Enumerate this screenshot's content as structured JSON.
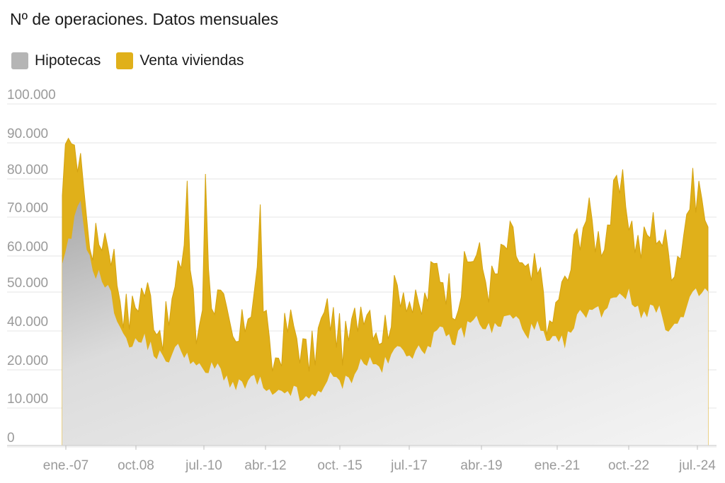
{
  "title": "Nº de operaciones. Datos mensuales",
  "legend": [
    {
      "name": "Hipotecas",
      "color": "#b5b5b5"
    },
    {
      "name": "Venta viviendas",
      "color": "#e0b01a"
    }
  ],
  "chart_data": {
    "type": "area",
    "title": "Nº de operaciones. Datos mensuales",
    "xlabel": "",
    "ylabel": "",
    "ylim": [
      0,
      100000
    ],
    "y_ticks": [
      "0",
      "10.000",
      "20.000",
      "40.000",
      "50.000",
      "60.000",
      "70.000",
      "80.000",
      "90.000",
      "100.000"
    ],
    "x_ticks": [
      "ene.-07",
      "oct.08",
      "jul.-10",
      "abr.-12",
      "oct. -15",
      "jul.-17",
      "abr.-19",
      "ene.-21",
      "oct.-22",
      "jul.-24"
    ],
    "grid": true,
    "legend_position": "top-left",
    "x_start": "2007-01",
    "x_end": "2024-09",
    "series": [
      {
        "name": "Hipotecas",
        "color": "#b5b5b5",
        "anchors": [
          [
            "2007-01",
            52000
          ],
          [
            "2007-04",
            60000
          ],
          [
            "2007-07",
            72000
          ],
          [
            "2007-10",
            56000
          ],
          [
            "2008-01",
            50000
          ],
          [
            "2008-04",
            44000
          ],
          [
            "2008-07",
            38000
          ],
          [
            "2008-10",
            34000
          ],
          [
            "2009-01",
            30000
          ],
          [
            "2009-07",
            28000
          ],
          [
            "2010-01",
            27000
          ],
          [
            "2010-07",
            26000
          ],
          [
            "2011-01",
            22000
          ],
          [
            "2011-07",
            20000
          ],
          [
            "2012-01",
            18000
          ],
          [
            "2012-07",
            17000
          ],
          [
            "2013-01",
            15000
          ],
          [
            "2013-07",
            14000
          ],
          [
            "2014-01",
            16000
          ],
          [
            "2014-07",
            19000
          ],
          [
            "2015-01",
            22000
          ],
          [
            "2015-07",
            24000
          ],
          [
            "2016-01",
            26000
          ],
          [
            "2016-07",
            28000
          ],
          [
            "2017-01",
            30000
          ],
          [
            "2017-07",
            32000
          ],
          [
            "2018-01",
            34000
          ],
          [
            "2018-07",
            36000
          ],
          [
            "2019-01",
            36000
          ],
          [
            "2019-07",
            36000
          ],
          [
            "2020-01",
            35000
          ],
          [
            "2020-04",
            28000
          ],
          [
            "2020-07",
            30000
          ],
          [
            "2021-01",
            35000
          ],
          [
            "2021-07",
            40000
          ],
          [
            "2022-01",
            43000
          ],
          [
            "2022-07",
            44000
          ],
          [
            "2023-01",
            40000
          ],
          [
            "2023-07",
            36000
          ],
          [
            "2024-01",
            38000
          ],
          [
            "2024-07",
            45000
          ],
          [
            "2024-09",
            47000
          ]
        ]
      },
      {
        "name": "Venta viviendas",
        "color": "#e0b01a",
        "anchors": [
          [
            "2007-01",
            68000
          ],
          [
            "2007-03",
            92000
          ],
          [
            "2007-05",
            78000
          ],
          [
            "2007-07",
            88000
          ],
          [
            "2007-09",
            70000
          ],
          [
            "2007-12",
            62000
          ],
          [
            "2008-03",
            58000
          ],
          [
            "2008-06",
            52000
          ],
          [
            "2008-09",
            46000
          ],
          [
            "2008-12",
            42000
          ],
          [
            "2009-06",
            40000
          ],
          [
            "2009-12",
            40000
          ],
          [
            "2010-03",
            44000
          ],
          [
            "2010-06",
            62000
          ],
          [
            "2010-09",
            36000
          ],
          [
            "2010-12",
            55000
          ],
          [
            "2011-03",
            38000
          ],
          [
            "2011-09",
            34000
          ],
          [
            "2012-03",
            38000
          ],
          [
            "2012-06",
            50000
          ],
          [
            "2012-09",
            30000
          ],
          [
            "2012-12",
            30000
          ],
          [
            "2013-06",
            30000
          ],
          [
            "2013-12",
            32000
          ],
          [
            "2014-06",
            34000
          ],
          [
            "2014-12",
            36000
          ],
          [
            "2015-06",
            38000
          ],
          [
            "2015-12",
            40000
          ],
          [
            "2016-06",
            43000
          ],
          [
            "2016-12",
            45000
          ],
          [
            "2017-06",
            48000
          ],
          [
            "2017-12",
            50000
          ],
          [
            "2018-06",
            52000
          ],
          [
            "2018-12",
            54000
          ],
          [
            "2019-06",
            55000
          ],
          [
            "2019-12",
            53000
          ],
          [
            "2020-03",
            42000
          ],
          [
            "2020-05",
            26000
          ],
          [
            "2020-08",
            48000
          ],
          [
            "2020-12",
            56000
          ],
          [
            "2021-06",
            64000
          ],
          [
            "2021-12",
            68000
          ],
          [
            "2022-06",
            70000
          ],
          [
            "2022-12",
            62000
          ],
          [
            "2023-06",
            58000
          ],
          [
            "2023-12",
            62000
          ],
          [
            "2024-03",
            68000
          ],
          [
            "2024-07",
            74000
          ],
          [
            "2024-09",
            64000
          ]
        ],
        "spikes": [
          [
            "2010-06",
            78000
          ],
          [
            "2010-12",
            80000
          ],
          [
            "2012-06",
            71000
          ]
        ]
      }
    ]
  }
}
